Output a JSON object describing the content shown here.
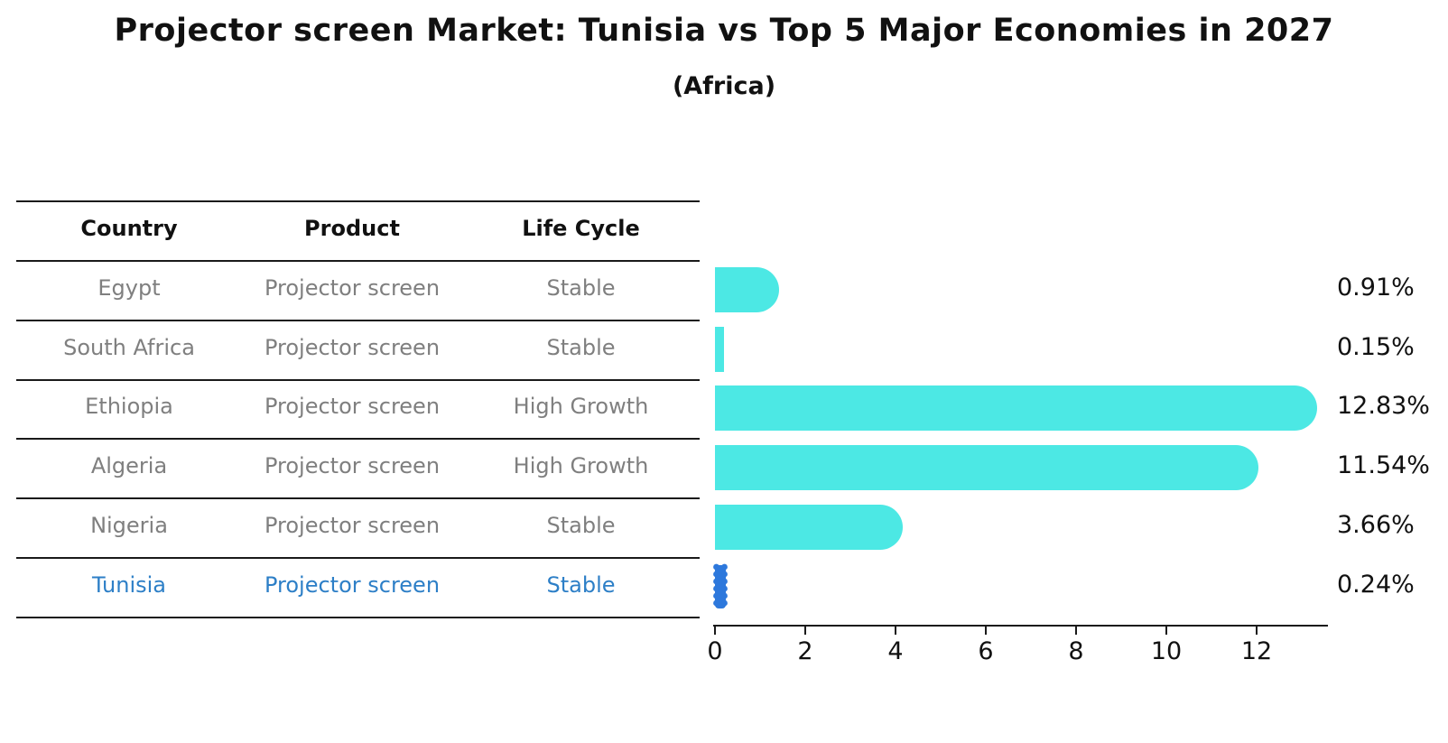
{
  "title": "Projector screen Market: Tunisia vs Top 5 Major Economies in 2027",
  "subtitle": "(Africa)",
  "table": {
    "headers": [
      "Country",
      "Product",
      "Life Cycle"
    ],
    "rows": [
      {
        "country": "Egypt",
        "product": "Projector screen",
        "life_cycle": "Stable",
        "highlight": false
      },
      {
        "country": "South Africa",
        "product": "Projector screen",
        "life_cycle": "Stable",
        "highlight": false
      },
      {
        "country": "Ethiopia",
        "product": "Projector screen",
        "life_cycle": "High Growth",
        "highlight": false
      },
      {
        "country": "Algeria",
        "product": "Projector screen",
        "life_cycle": "High Growth",
        "highlight": false
      },
      {
        "country": "Nigeria",
        "product": "Projector screen",
        "life_cycle": "Stable",
        "highlight": false
      },
      {
        "country": "Tunisia",
        "product": "Projector screen",
        "life_cycle": "Stable",
        "highlight": true
      }
    ]
  },
  "chart_data": {
    "type": "bar",
    "orientation": "horizontal",
    "categories": [
      "Egypt",
      "South Africa",
      "Ethiopia",
      "Algeria",
      "Nigeria",
      "Tunisia"
    ],
    "values": [
      0.91,
      0.15,
      12.83,
      11.54,
      3.66,
      0.24
    ],
    "value_labels": [
      "0.91%",
      "0.15%",
      "12.83%",
      "11.54%",
      "3.66%",
      "0.24%"
    ],
    "highlight_index": 5,
    "xticks": [
      0,
      2,
      4,
      6,
      8,
      10,
      12
    ],
    "xlim": [
      0,
      13.6
    ],
    "grid": false,
    "legend": "none",
    "bar_color": "#4ce8e4",
    "highlight_bar_color": "#2d78dc",
    "highlight_text_color": "#2d7fc7",
    "text_color": "#7f7f7f"
  }
}
